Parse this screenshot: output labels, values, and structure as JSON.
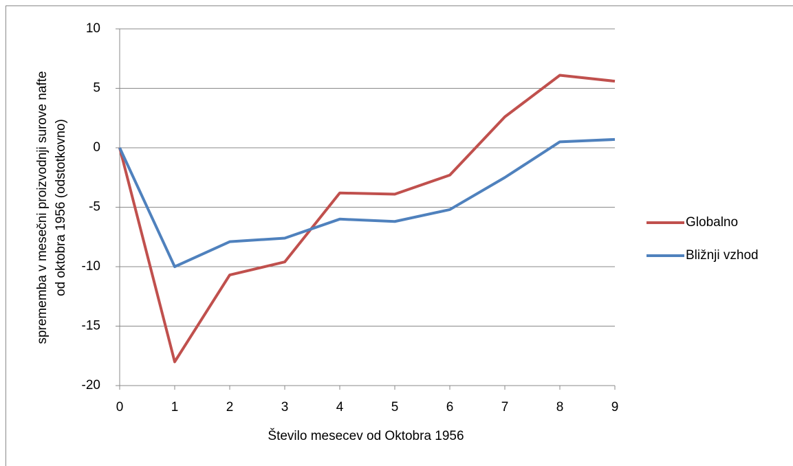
{
  "chart_data": {
    "type": "line",
    "xlabel": "Število mesecev od Oktobra 1956",
    "ylabel": [
      "sprememba v mesečni proizvodnji surove nafte",
      "od oktobra 1956  (odstotkovno)"
    ],
    "x": [
      0,
      1,
      2,
      3,
      4,
      5,
      6,
      7,
      8,
      9
    ],
    "series": [
      {
        "name": "Globalno",
        "color": "#c0504d",
        "values": [
          0,
          -18,
          -10.7,
          -9.6,
          -3.8,
          -3.9,
          -2.3,
          2.6,
          6.1,
          5.6
        ]
      },
      {
        "name": "Bližnji vzhod",
        "color": "#4f81bd",
        "values": [
          0,
          -10,
          -7.9,
          -7.6,
          -6.0,
          -6.2,
          -5.2,
          -2.5,
          0.5,
          0.7
        ]
      }
    ],
    "xlim": [
      0,
      9
    ],
    "xticks": [
      0,
      1,
      2,
      3,
      4,
      5,
      6,
      7,
      8,
      9
    ],
    "ylim": [
      -20,
      10
    ],
    "yticks": [
      -20,
      -15,
      -10,
      -5,
      0,
      5,
      10
    ],
    "grid": true,
    "legend": "right"
  }
}
